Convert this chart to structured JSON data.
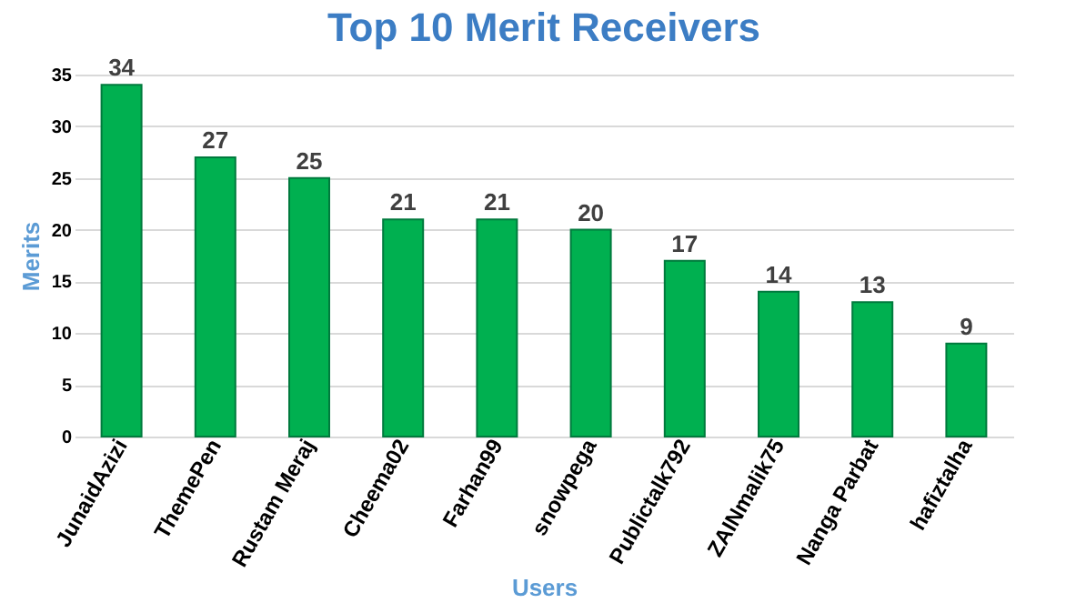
{
  "chart_data": {
    "type": "bar",
    "title": "Top 10 Merit Receivers",
    "xlabel": "Users",
    "ylabel": "Merits",
    "categories": [
      "JunaidAzizi",
      "ThemePen",
      "Rustam Meraj",
      "Cheema02",
      "Farhan99",
      "snowpega",
      "Publictalk792",
      "ZAINmalik75",
      "Nanga Parbat",
      "hafiztalha"
    ],
    "values": [
      34,
      27,
      25,
      21,
      21,
      20,
      17,
      14,
      13,
      9
    ],
    "color": "#00b050",
    "ylim": [
      0,
      35
    ],
    "yticks": [
      0,
      5,
      10,
      15,
      20,
      25,
      30,
      35
    ],
    "grid": "y",
    "data_labels": true
  }
}
